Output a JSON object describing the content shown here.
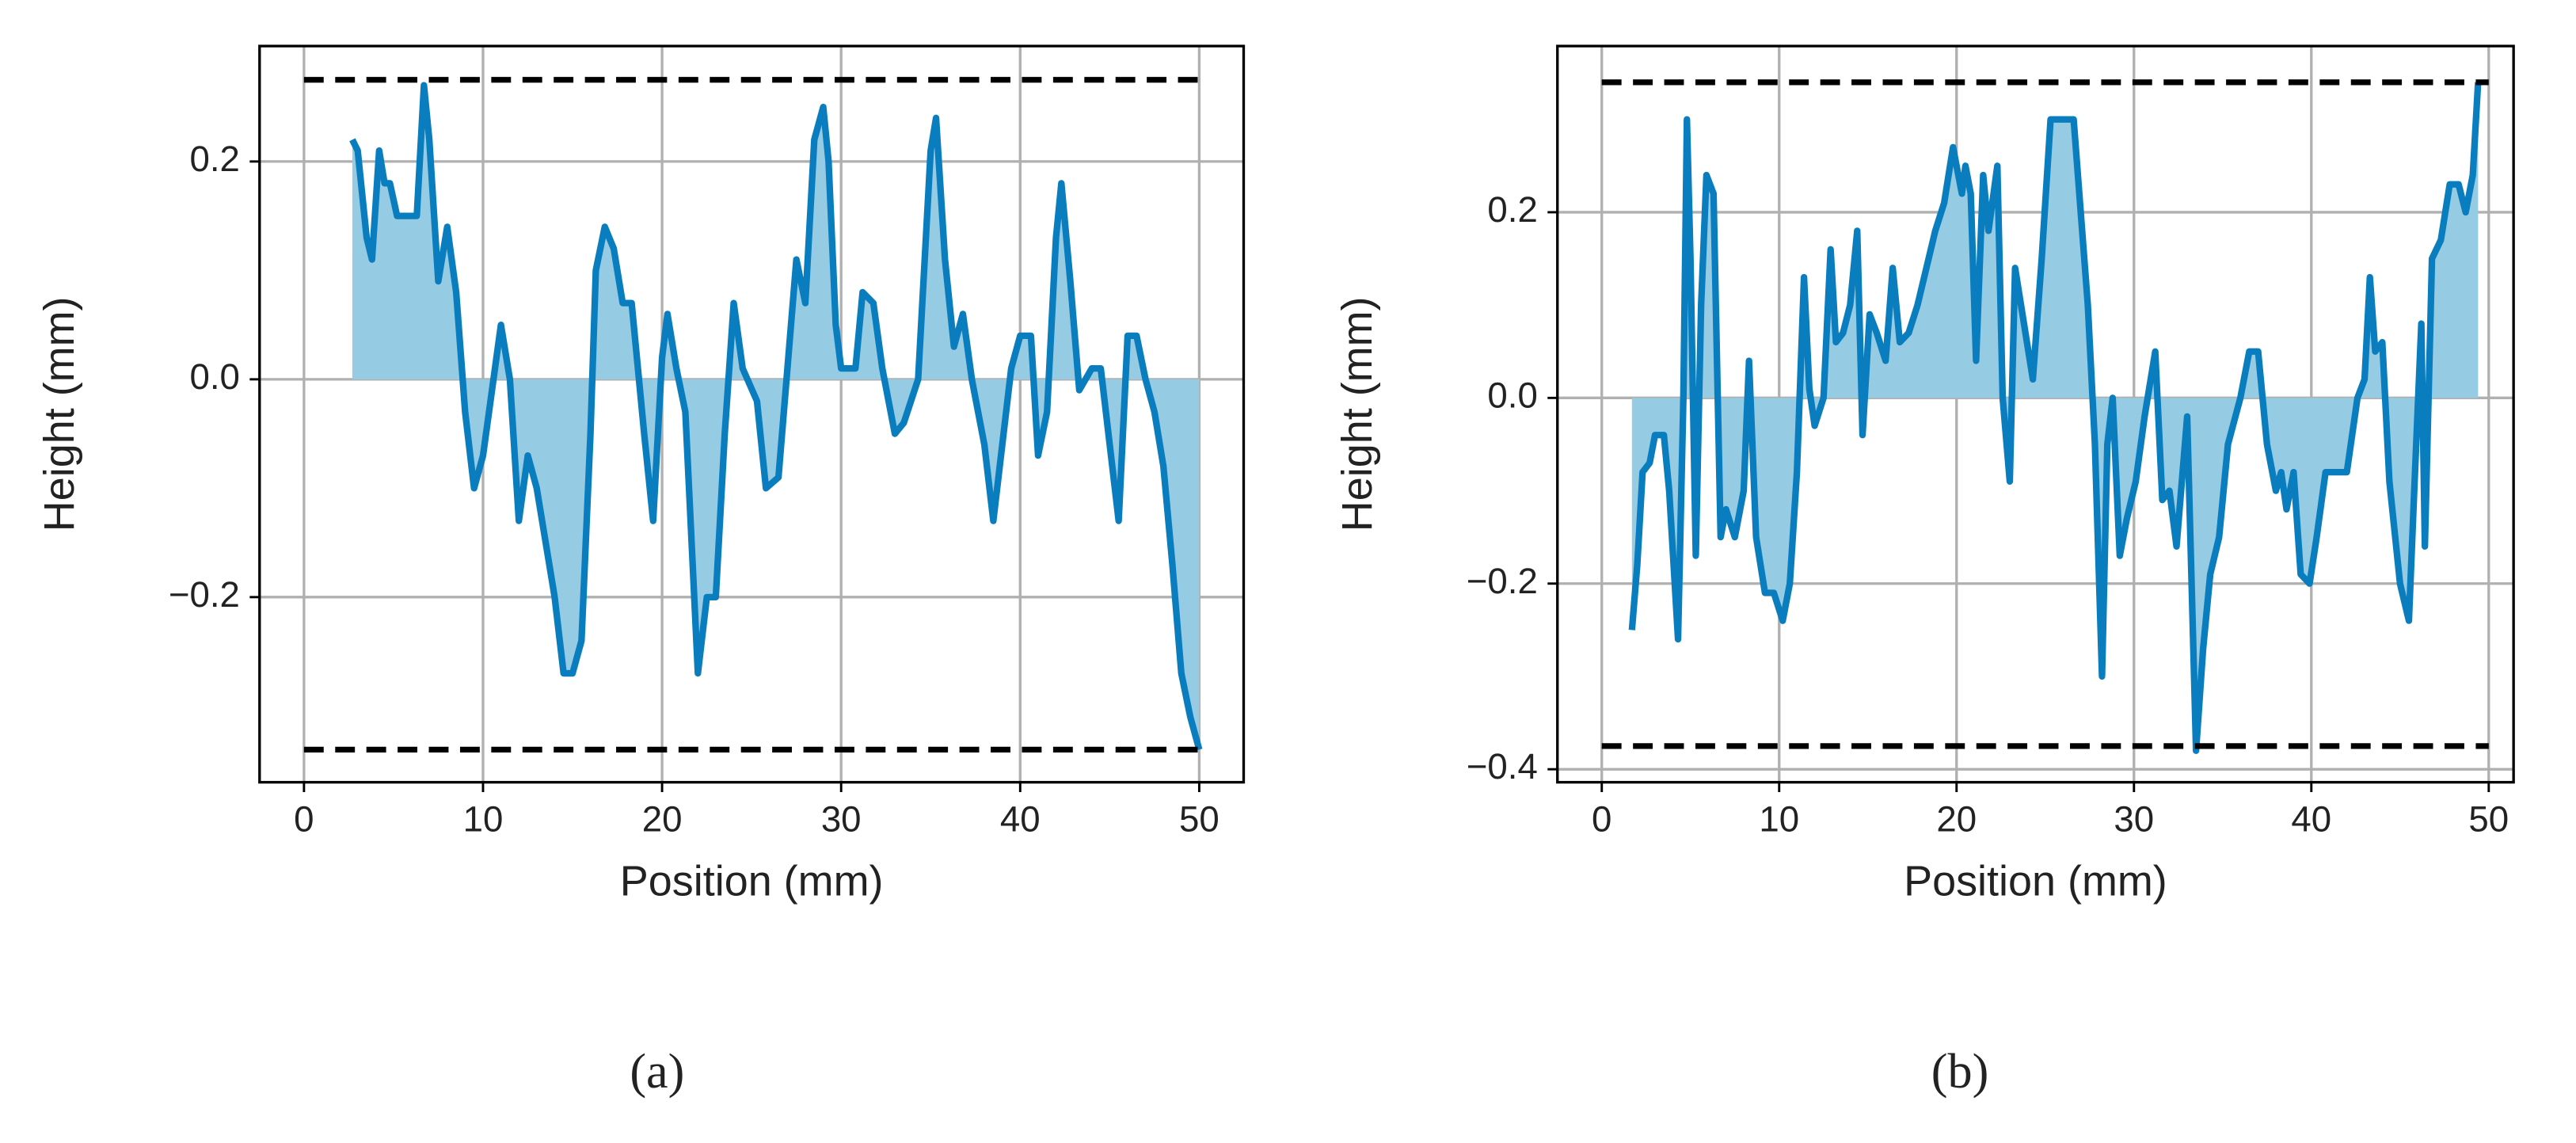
{
  "chart_data": [
    {
      "type": "line",
      "caption": "(a)",
      "xlabel": "Position (mm)",
      "ylabel": "Height (mm)",
      "color": "#0a7dbf",
      "fill_color": "#96cbe4",
      "grid": true,
      "xlim": [
        -2.48,
        52.48
      ],
      "ylim": [
        -0.37,
        0.306
      ],
      "xticks": [
        0,
        10,
        20,
        30,
        40,
        50
      ],
      "yticks": [
        {
          "value": -0.2,
          "label": "−0.2"
        },
        {
          "value": 0,
          "label": "0.0"
        },
        0.2
      ],
      "hlines": [
        0.275,
        -0.34
      ],
      "x": [
        2.7,
        3.0,
        3.5,
        3.8,
        4.2,
        4.5,
        4.8,
        5.2,
        6.0,
        6.3,
        6.7,
        7.0,
        7.5,
        8.0,
        8.5,
        9.0,
        9.5,
        10,
        10.5,
        11,
        11.5,
        12,
        12.5,
        13,
        13.5,
        14,
        14.5,
        15,
        15.5,
        16,
        16.3,
        16.8,
        17.3,
        17.8,
        18.3,
        19,
        19.5,
        20,
        20.3,
        20.8,
        21.3,
        22,
        22.5,
        23,
        23.5,
        24,
        24.5,
        25.3,
        25.8,
        26.5,
        27,
        27.5,
        28,
        28.5,
        29,
        29.3,
        29.7,
        30,
        30.8,
        31.2,
        31.8,
        32.3,
        33,
        33.5,
        34.3,
        35,
        35.3,
        35.8,
        36.3,
        36.8,
        37.3,
        38,
        38.5,
        39,
        39.5,
        40,
        40.6,
        41,
        41.5,
        42,
        42.3,
        42.8,
        43.3,
        44,
        44.5,
        45,
        45.5,
        46,
        46.5,
        47,
        47.5,
        48,
        48.5,
        49,
        49.5,
        50
      ],
      "values": [
        0.22,
        0.21,
        0.13,
        0.11,
        0.21,
        0.18,
        0.18,
        0.15,
        0.15,
        0.15,
        0.27,
        0.22,
        0.09,
        0.14,
        0.08,
        -0.03,
        -0.1,
        -0.07,
        -0.01,
        0.05,
        0.0,
        -0.13,
        -0.07,
        -0.1,
        -0.15,
        -0.2,
        -0.27,
        -0.27,
        -0.24,
        -0.05,
        0.1,
        0.14,
        0.12,
        0.07,
        0.07,
        -0.05,
        -0.13,
        0.02,
        0.06,
        0.01,
        -0.03,
        -0.27,
        -0.2,
        -0.2,
        -0.05,
        0.07,
        0.01,
        -0.02,
        -0.1,
        -0.09,
        0.01,
        0.11,
        0.07,
        0.22,
        0.25,
        0.2,
        0.05,
        0.01,
        0.01,
        0.08,
        0.07,
        0.01,
        -0.05,
        -0.04,
        0.0,
        0.21,
        0.24,
        0.11,
        0.03,
        0.06,
        0.0,
        -0.06,
        -0.13,
        -0.06,
        0.01,
        0.04,
        0.04,
        -0.07,
        -0.03,
        0.13,
        0.18,
        0.09,
        -0.01,
        0.01,
        0.01,
        -0.06,
        -0.13,
        0.04,
        0.04,
        0.0,
        -0.03,
        -0.08,
        -0.17,
        -0.27,
        -0.31,
        -0.34
      ]
    },
    {
      "type": "line",
      "caption": "(b)",
      "xlabel": "Position (mm)",
      "ylabel": "Height (mm)",
      "color": "#0a7dbf",
      "fill_color": "#96cbe4",
      "grid": true,
      "xlim": [
        -2.5,
        51.4
      ],
      "ylim": [
        -0.414,
        0.379
      ],
      "xticks": [
        0,
        10,
        20,
        30,
        40,
        50
      ],
      "yticks": [
        {
          "value": -0.4,
          "label": "−0.4"
        },
        {
          "value": -0.2,
          "label": "−0.2"
        },
        {
          "value": 0,
          "label": "0.0"
        },
        0.2
      ],
      "hlines": [
        0.34,
        -0.375
      ],
      "x": [
        1.7,
        2,
        2.3,
        2.7,
        3,
        3.5,
        3.8,
        4.3,
        4.6,
        4.8,
        5,
        5.3,
        5.6,
        5.9,
        6.3,
        6.7,
        7,
        7.5,
        8,
        8.3,
        8.7,
        9.2,
        9.7,
        10.2,
        10.6,
        11,
        11.4,
        11.7,
        12,
        12.5,
        12.9,
        13.2,
        13.6,
        14,
        14.4,
        14.7,
        15.1,
        15.5,
        16,
        16.4,
        16.8,
        17.3,
        17.8,
        18.3,
        18.8,
        19.3,
        19.8,
        20.3,
        20.5,
        20.8,
        21.1,
        21.5,
        21.8,
        22.3,
        22.6,
        23,
        23.3,
        23.8,
        24.3,
        24.8,
        25.3,
        26,
        26.6,
        27,
        27.4,
        27.8,
        28.2,
        28.5,
        28.8,
        29.2,
        29.6,
        30.1,
        30.6,
        31.2,
        31.6,
        32,
        32.4,
        33,
        33.5,
        33.9,
        34.3,
        34.8,
        35.3,
        36,
        36.5,
        37,
        37.5,
        38,
        38.3,
        38.6,
        39,
        39.4,
        39.9,
        40.3,
        40.8,
        41.3,
        42,
        42.6,
        43,
        43.3,
        43.6,
        44,
        44.4,
        45,
        45.5,
        45.8,
        46.2,
        46.4,
        46.8,
        47.3,
        47.8,
        48.3,
        48.7,
        49.1,
        49.4
      ],
      "values": [
        -0.25,
        -0.18,
        -0.08,
        -0.07,
        -0.04,
        -0.04,
        -0.1,
        -0.26,
        0.0,
        0.3,
        0.15,
        -0.17,
        0.1,
        0.24,
        0.22,
        -0.15,
        -0.12,
        -0.15,
        -0.1,
        0.04,
        -0.15,
        -0.21,
        -0.21,
        -0.24,
        -0.2,
        -0.08,
        0.13,
        0.01,
        -0.03,
        0.0,
        0.16,
        0.06,
        0.07,
        0.1,
        0.18,
        -0.04,
        0.09,
        0.07,
        0.04,
        0.14,
        0.06,
        0.07,
        0.1,
        0.14,
        0.18,
        0.21,
        0.27,
        0.22,
        0.25,
        0.22,
        0.04,
        0.24,
        0.18,
        0.25,
        0.0,
        -0.09,
        0.14,
        0.08,
        0.02,
        0.15,
        0.3,
        0.3,
        0.3,
        0.2,
        0.1,
        -0.05,
        -0.3,
        -0.05,
        0.0,
        -0.17,
        -0.13,
        -0.09,
        -0.02,
        0.05,
        -0.11,
        -0.1,
        -0.16,
        -0.02,
        -0.38,
        -0.27,
        -0.19,
        -0.15,
        -0.05,
        0.0,
        0.05,
        0.05,
        -0.05,
        -0.1,
        -0.08,
        -0.12,
        -0.08,
        -0.19,
        -0.2,
        -0.15,
        -0.08,
        -0.08,
        -0.08,
        0.0,
        0.02,
        0.13,
        0.05,
        0.06,
        -0.09,
        -0.2,
        -0.24,
        -0.1,
        0.08,
        -0.16,
        0.15,
        0.17,
        0.23,
        0.23,
        0.2,
        0.24,
        0.34
      ]
    }
  ]
}
